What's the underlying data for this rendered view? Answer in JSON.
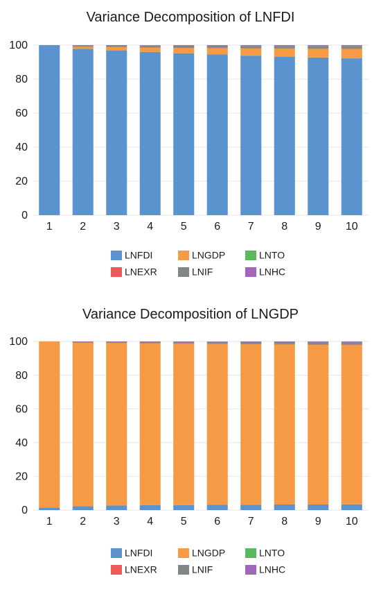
{
  "chart_data": [
    {
      "type": "bar",
      "stacked": true,
      "title": "Variance Decomposition of LNFDI",
      "xlabel": "",
      "ylabel": "",
      "ylim": [
        0,
        100
      ],
      "yticks": [
        0,
        20,
        40,
        60,
        80,
        100
      ],
      "grid": true,
      "legend_position": "bottom",
      "categories": [
        "1",
        "2",
        "3",
        "4",
        "5",
        "6",
        "7",
        "8",
        "9",
        "10"
      ],
      "series": [
        {
          "name": "LNFDI",
          "color": "#5b93cf",
          "values": [
            100,
            97.8,
            96.9,
            96.0,
            95.2,
            94.5,
            93.8,
            93.2,
            92.7,
            92.2
          ]
        },
        {
          "name": "LNGDP",
          "color": "#f79a45",
          "values": [
            0,
            1.3,
            2.0,
            2.6,
            3.2,
            3.8,
            4.3,
            4.8,
            5.2,
            5.6
          ]
        },
        {
          "name": "LNTO",
          "color": "#5cb85c",
          "values": [
            0,
            0.1,
            0.1,
            0.1,
            0.1,
            0.1,
            0.1,
            0.1,
            0.1,
            0.1
          ]
        },
        {
          "name": "LNEXR",
          "color": "#ee5a5a",
          "values": [
            0,
            0.1,
            0.1,
            0.1,
            0.1,
            0.1,
            0.1,
            0.1,
            0.1,
            0.1
          ]
        },
        {
          "name": "LNIF",
          "color": "#7f8787",
          "values": [
            0,
            0.6,
            0.7,
            0.9,
            1.0,
            1.1,
            1.2,
            1.3,
            1.4,
            1.5
          ]
        },
        {
          "name": "LNHC",
          "color": "#a466b8",
          "values": [
            0,
            0.1,
            0.2,
            0.3,
            0.4,
            0.4,
            0.5,
            0.5,
            0.5,
            0.5
          ]
        }
      ]
    },
    {
      "type": "bar",
      "stacked": true,
      "title": "Variance Decomposition of LNGDP",
      "xlabel": "",
      "ylabel": "",
      "ylim": [
        0,
        100
      ],
      "yticks": [
        0,
        20,
        40,
        60,
        80,
        100
      ],
      "grid": true,
      "legend_position": "bottom",
      "categories": [
        "1",
        "2",
        "3",
        "4",
        "5",
        "6",
        "7",
        "8",
        "9",
        "10"
      ],
      "series": [
        {
          "name": "LNFDI",
          "color": "#5b93cf",
          "values": [
            1.5,
            2.3,
            2.7,
            2.9,
            3.0,
            3.1,
            3.2,
            3.3,
            3.3,
            3.4
          ]
        },
        {
          "name": "LNGDP",
          "color": "#f79a45",
          "values": [
            98.5,
            97.2,
            96.5,
            96.1,
            95.8,
            95.5,
            95.2,
            95.0,
            94.8,
            94.6
          ]
        },
        {
          "name": "LNTO",
          "color": "#5cb85c",
          "values": [
            0,
            0.05,
            0.1,
            0.1,
            0.1,
            0.1,
            0.1,
            0.1,
            0.1,
            0.1
          ]
        },
        {
          "name": "LNEXR",
          "color": "#ee5a5a",
          "values": [
            0,
            0.05,
            0.1,
            0.1,
            0.1,
            0.1,
            0.1,
            0.1,
            0.1,
            0.1
          ]
        },
        {
          "name": "LNIF",
          "color": "#7f8787",
          "values": [
            0,
            0.3,
            0.5,
            0.7,
            0.8,
            0.9,
            1.0,
            1.1,
            1.2,
            1.3
          ]
        },
        {
          "name": "LNHC",
          "color": "#a466b8",
          "values": [
            0,
            0.1,
            0.1,
            0.1,
            0.2,
            0.3,
            0.4,
            0.4,
            0.5,
            0.5
          ]
        }
      ]
    }
  ]
}
